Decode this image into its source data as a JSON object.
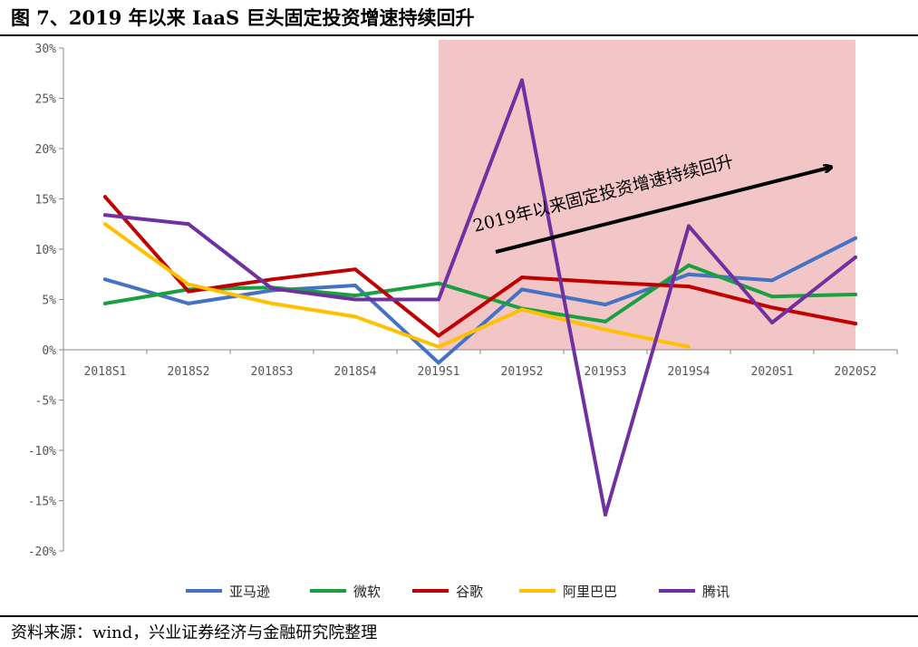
{
  "title": "图 7、2019 年以来 IaaS 巨头固定投资增速持续回升",
  "source": "资料来源：wind，兴业证券经济与金融研究院整理",
  "chart_data": {
    "type": "line",
    "categories": [
      "2018S1",
      "2018S2",
      "2018S3",
      "2018S4",
      "2019S1",
      "2019S2",
      "2019S3",
      "2019S4",
      "2020S1",
      "2020S2"
    ],
    "ylim": [
      -20,
      30
    ],
    "yticks": [
      30,
      25,
      20,
      15,
      10,
      5,
      0,
      -5,
      -10,
      -15,
      -20
    ],
    "ytick_labels": [
      "30%",
      "25%",
      "20%",
      "15%",
      "10%",
      "5%",
      "0%",
      "-5%",
      "-10%",
      "-15%",
      "-20%"
    ],
    "grid": false,
    "legend_position": "bottom",
    "highlight_region": {
      "from": "2019S1",
      "to": "2020S2",
      "color": "#f2c6c6"
    },
    "annotation": {
      "text": "2019年以来固定投资增速持续回升"
    },
    "series": [
      {
        "name": "亚马逊",
        "color": "#4472c4",
        "values": [
          7.0,
          4.6,
          5.9,
          6.4,
          -1.3,
          6.0,
          4.5,
          7.5,
          6.9,
          11.1
        ]
      },
      {
        "name": "微软",
        "color": "#1aa040",
        "values": [
          4.6,
          6.0,
          6.2,
          5.4,
          6.6,
          4.1,
          2.8,
          8.4,
          5.3,
          5.5
        ]
      },
      {
        "name": "谷歌",
        "color": "#c00000",
        "values": [
          15.2,
          5.8,
          7.0,
          8.0,
          1.4,
          7.2,
          6.7,
          6.3,
          4.2,
          2.6
        ]
      },
      {
        "name": "阿里巴巴",
        "color": "#ffc000",
        "values": [
          12.5,
          6.5,
          4.6,
          3.3,
          0.3,
          4.0,
          2.0,
          0.3,
          null,
          null
        ]
      },
      {
        "name": "腾讯",
        "color": "#7030a0",
        "values": [
          13.4,
          12.5,
          6.1,
          5.0,
          5.0,
          26.8,
          -16.4,
          12.3,
          2.7,
          9.2
        ]
      }
    ]
  }
}
